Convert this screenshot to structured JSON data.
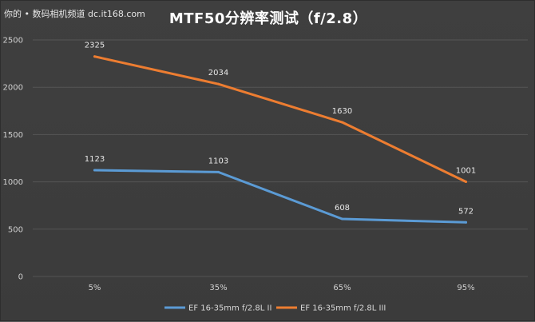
{
  "watermark": "你的 • 数码相机频道 dc.it168.com",
  "chart_data": {
    "type": "line",
    "title": "MTF50分辨率测试（f/2.8）",
    "categories": [
      "5%",
      "35%",
      "65%",
      "95%"
    ],
    "ylim": [
      0,
      2500
    ],
    "yticks": [
      0,
      500,
      1000,
      1500,
      2000,
      2500
    ],
    "grid": true,
    "legend_position": "bottom",
    "series": [
      {
        "name": "EF 16-35mm f/2.8L II",
        "color": "#5b9bd5",
        "values": [
          1123,
          1103,
          608,
          572
        ]
      },
      {
        "name": "EF 16-35mm f/2.8L III",
        "color": "#ed7d31",
        "values": [
          2325,
          2034,
          1630,
          1001
        ]
      }
    ]
  }
}
